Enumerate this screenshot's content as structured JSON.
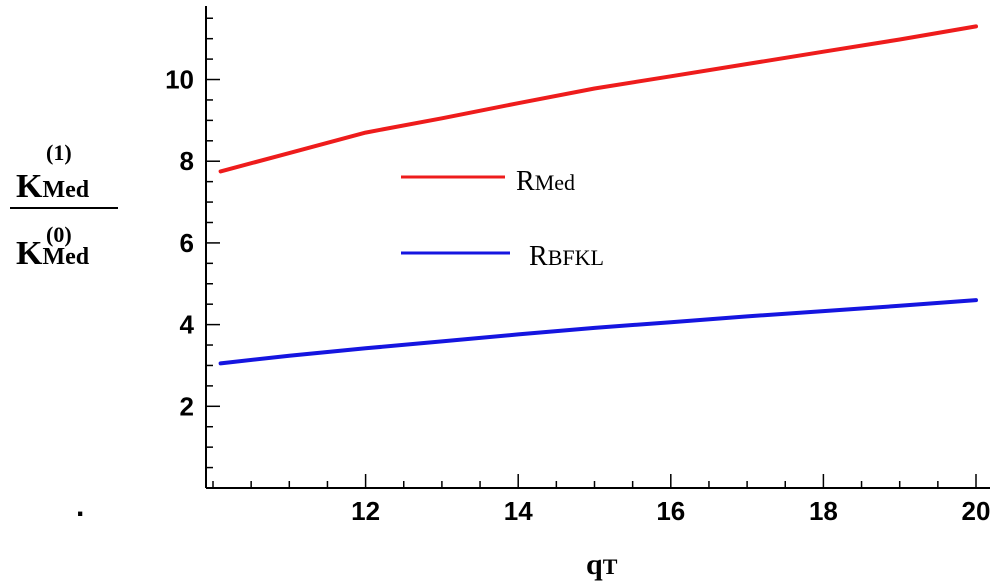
{
  "chart_data": {
    "type": "line",
    "title": "",
    "xlabel": {
      "main": "q",
      "sub": "T"
    },
    "ylabel": {
      "numerator": {
        "base": "K",
        "sub": "Med",
        "sup": "(1)"
      },
      "denominator": {
        "base": "K",
        "sub": "Med",
        "sup": "(0)"
      }
    },
    "xlim": [
      10,
      20
    ],
    "ylim": [
      0,
      11.8
    ],
    "xticks": [
      12,
      14,
      16,
      18,
      20
    ],
    "yticks": [
      2,
      4,
      6,
      8,
      10
    ],
    "legend_position": "center",
    "grid": false,
    "stray_mark": ".",
    "series": [
      {
        "name": {
          "main": "R",
          "sub": "Med"
        },
        "color": "#ee1c1c",
        "x": [
          10.1,
          11,
          12,
          13,
          14,
          15,
          16,
          17,
          18,
          19,
          20
        ],
        "y": [
          7.75,
          8.2,
          8.7,
          9.05,
          9.42,
          9.78,
          10.08,
          10.38,
          10.68,
          10.98,
          11.3
        ]
      },
      {
        "name": {
          "main": "R",
          "sub": "BFKL"
        },
        "color": "#1515e0",
        "x": [
          10.1,
          11,
          12,
          13,
          14,
          15,
          16,
          17,
          18,
          19,
          20
        ],
        "y": [
          3.05,
          3.24,
          3.42,
          3.59,
          3.76,
          3.92,
          4.06,
          4.2,
          4.33,
          4.46,
          4.6
        ]
      }
    ]
  }
}
